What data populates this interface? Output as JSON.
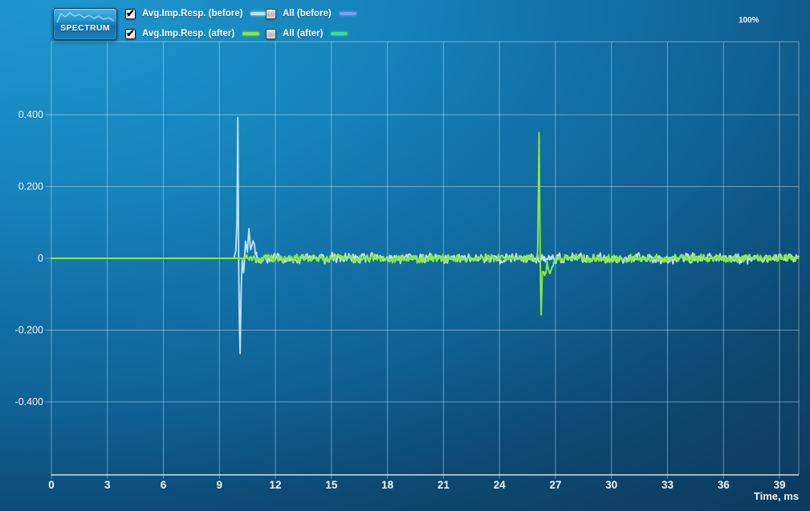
{
  "toolbar": {
    "spectrum_button_label": "SPECTRUM"
  },
  "status": {
    "zoom_percent": "100%"
  },
  "icons": {
    "checkmark": "✔"
  },
  "legend": {
    "items": [
      {
        "label": "Avg.Imp.Resp. (before)",
        "checked": true,
        "swatch_color": "#b9e3f5"
      },
      {
        "label": "Avg.Imp.Resp. (after)",
        "checked": true,
        "swatch_color": "#86ea3f"
      },
      {
        "label": "All (before)",
        "checked": false,
        "swatch_color": "#7d9cf0"
      },
      {
        "label": "All (after)",
        "checked": false,
        "swatch_color": "#41da8c"
      }
    ]
  },
  "chart_data": {
    "type": "line",
    "title": "",
    "xlabel": "Time, ms",
    "ylabel": "",
    "x_ticks": [
      0,
      3,
      6,
      9,
      12,
      15,
      18,
      21,
      24,
      27,
      30,
      33,
      36,
      39
    ],
    "x_range": [
      0,
      40.05
    ],
    "y_ticks": [
      0.4,
      0.2,
      0,
      -0.2,
      -0.4
    ],
    "y_tick_labels": [
      "0.400",
      "0.200",
      "0",
      "-0.200",
      "-0.400"
    ],
    "y_range": [
      -0.605,
      0.605
    ],
    "grid": true,
    "legend_position": "top",
    "series": [
      {
        "name": "Avg.Imp.Resp. (before)",
        "color": "#b9e3f5",
        "impulse_time_ms": 9.98,
        "peak": 0.392,
        "undershoot": -0.265,
        "noise_start_ms": 10.45,
        "noise_amplitude": 0.016,
        "keypoints": [
          [
            0,
            0
          ],
          [
            9.78,
            0
          ],
          [
            9.88,
            0.02
          ],
          [
            9.94,
            0.1
          ],
          [
            9.99,
            0.392
          ],
          [
            10.03,
            0.0
          ],
          [
            10.07,
            -0.18
          ],
          [
            10.11,
            -0.265
          ],
          [
            10.16,
            -0.1
          ],
          [
            10.22,
            -0.005
          ],
          [
            10.3,
            -0.04
          ],
          [
            10.4,
            0.048
          ],
          [
            10.5,
            0.018
          ],
          [
            10.58,
            0.082
          ],
          [
            10.66,
            0.028
          ],
          [
            10.8,
            0.042
          ],
          [
            10.93,
            0.012
          ],
          [
            11.15,
            -0.015
          ],
          [
            11.45,
            0
          ]
        ]
      },
      {
        "name": "Avg.Imp.Resp. (after)",
        "color": "#86ea3f",
        "impulse_time_ms": 26.15,
        "peak": 0.35,
        "undershoot": -0.16,
        "noise_start_ms": 10.15,
        "noise_amplitude": 0.013,
        "keypoints": [
          [
            0,
            0
          ],
          [
            25.95,
            0
          ],
          [
            26.05,
            0.02
          ],
          [
            26.12,
            0.35
          ],
          [
            26.18,
            0.0
          ],
          [
            26.23,
            -0.158
          ],
          [
            26.3,
            -0.03
          ],
          [
            26.42,
            -0.058
          ],
          [
            26.55,
            -0.012
          ],
          [
            26.72,
            -0.046
          ],
          [
            26.9,
            -0.008
          ],
          [
            27.05,
            0
          ]
        ]
      }
    ]
  }
}
